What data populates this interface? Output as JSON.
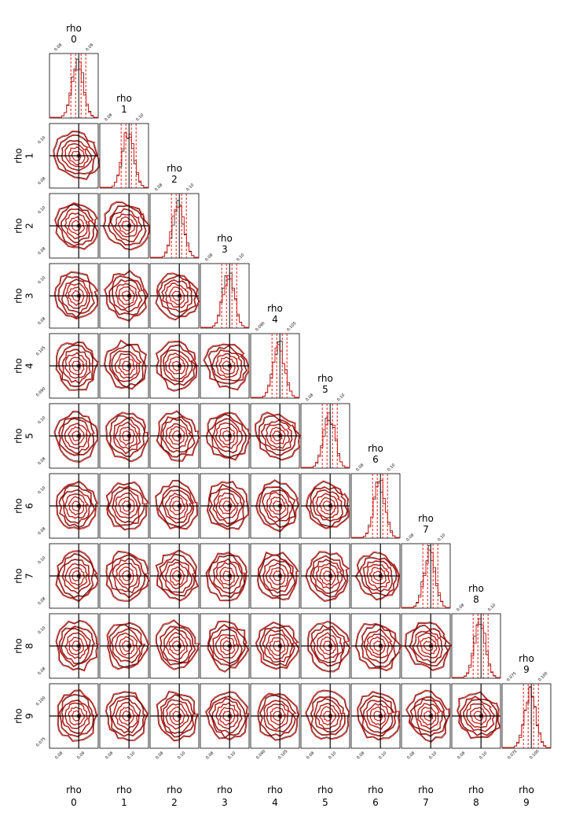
{
  "chart_data": {
    "type": "corner",
    "parameters": [
      {
        "name": "rho 0",
        "line1": "rho",
        "line2": "0",
        "truth": 0.09,
        "hist_lo": 0.087,
        "hist_hi": 0.093,
        "tick_labels": [
          "0.08",
          "0.09"
        ]
      },
      {
        "name": "rho 1",
        "line1": "rho",
        "line2": "1",
        "truth": 0.09,
        "hist_lo": 0.087,
        "hist_hi": 0.093,
        "tick_labels": [
          "0.08",
          "0.10"
        ]
      },
      {
        "name": "rho 2",
        "line1": "rho",
        "line2": "2",
        "truth": 0.09,
        "hist_lo": 0.087,
        "hist_hi": 0.093,
        "tick_labels": [
          "0.08",
          "0.10"
        ]
      },
      {
        "name": "rho 3",
        "line1": "rho",
        "line2": "3",
        "truth": 0.09,
        "hist_lo": 0.087,
        "hist_hi": 0.093,
        "tick_labels": [
          "0.08",
          "0.10"
        ]
      },
      {
        "name": "rho 4",
        "line1": "rho",
        "line2": "4",
        "truth": 0.095,
        "hist_lo": 0.093,
        "hist_hi": 0.099,
        "tick_labels": [
          "0.090",
          "0.105"
        ]
      },
      {
        "name": "rho 5",
        "line1": "rho",
        "line2": "5",
        "truth": 0.09,
        "hist_lo": 0.087,
        "hist_hi": 0.093,
        "tick_labels": [
          "0.08",
          "0.10"
        ]
      },
      {
        "name": "rho 6",
        "line1": "rho",
        "line2": "6",
        "truth": 0.09,
        "hist_lo": 0.087,
        "hist_hi": 0.093,
        "tick_labels": [
          "0.08",
          "0.10"
        ]
      },
      {
        "name": "rho 7",
        "line1": "rho",
        "line2": "7",
        "truth": 0.09,
        "hist_lo": 0.087,
        "hist_hi": 0.093,
        "tick_labels": [
          "0.08",
          "0.10"
        ]
      },
      {
        "name": "rho 8",
        "line1": "rho",
        "line2": "8",
        "truth": 0.09,
        "hist_lo": 0.087,
        "hist_hi": 0.093,
        "tick_labels": [
          "0.08",
          "0.10"
        ]
      },
      {
        "name": "rho 9",
        "line1": "rho",
        "line2": "9",
        "truth": 0.09,
        "hist_lo": 0.087,
        "hist_hi": 0.093,
        "tick_labels": [
          "0.075",
          "0.100"
        ]
      }
    ],
    "series_colors": {
      "primary": "#e0201b",
      "reference": "#000000"
    },
    "lower_panels": "2d-contours",
    "diagonal_panels": "1d-histograms",
    "truth_lines": true,
    "grid": false
  }
}
